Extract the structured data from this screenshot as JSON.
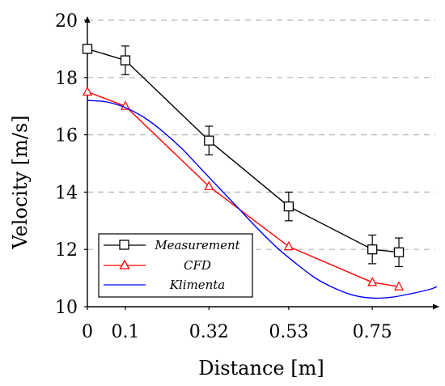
{
  "chart_data": {
    "type": "line",
    "xlabel": "Distance [m]",
    "ylabel": "Velocity [m/s]",
    "xlim": [
      0,
      0.92
    ],
    "ylim": [
      10,
      20
    ],
    "xticks": [
      0,
      0.1,
      0.32,
      0.53,
      0.75
    ],
    "xtick_labels": [
      "0",
      "0.1",
      "0.32",
      "0.53",
      "0.75"
    ],
    "yticks": [
      10,
      12,
      14,
      16,
      18,
      20
    ],
    "ytick_labels": [
      "10",
      "12",
      "14",
      "16",
      "18",
      "20"
    ],
    "grid": "horizontal dashed",
    "legend_position": "bottom-left",
    "series": [
      {
        "name": "Measurement",
        "color": "#000000",
        "marker": "square",
        "x": [
          0,
          0.1,
          0.32,
          0.53,
          0.75,
          0.82
        ],
        "y": [
          19.0,
          18.6,
          15.8,
          13.5,
          12.0,
          11.9
        ],
        "error": [
          0,
          0.5,
          0.5,
          0.5,
          0.5,
          0.5
        ]
      },
      {
        "name": "CFD",
        "color": "#ff0000",
        "marker": "triangle",
        "x": [
          0,
          0.1,
          0.32,
          0.53,
          0.75,
          0.82
        ],
        "y": [
          17.5,
          17.0,
          14.2,
          12.1,
          10.85,
          10.7
        ]
      },
      {
        "name": "Klimenta",
        "color": "#0000ff",
        "marker": "none",
        "x": [
          0,
          0.05,
          0.1,
          0.15,
          0.2,
          0.25,
          0.3,
          0.35,
          0.4,
          0.45,
          0.5,
          0.55,
          0.6,
          0.65,
          0.7,
          0.75,
          0.8,
          0.85,
          0.9,
          0.92
        ],
        "y": [
          17.2,
          17.15,
          16.95,
          16.6,
          16.1,
          15.5,
          14.8,
          14.1,
          13.4,
          12.7,
          12.05,
          11.5,
          11.0,
          10.65,
          10.4,
          10.3,
          10.33,
          10.45,
          10.6,
          10.7
        ]
      }
    ]
  }
}
